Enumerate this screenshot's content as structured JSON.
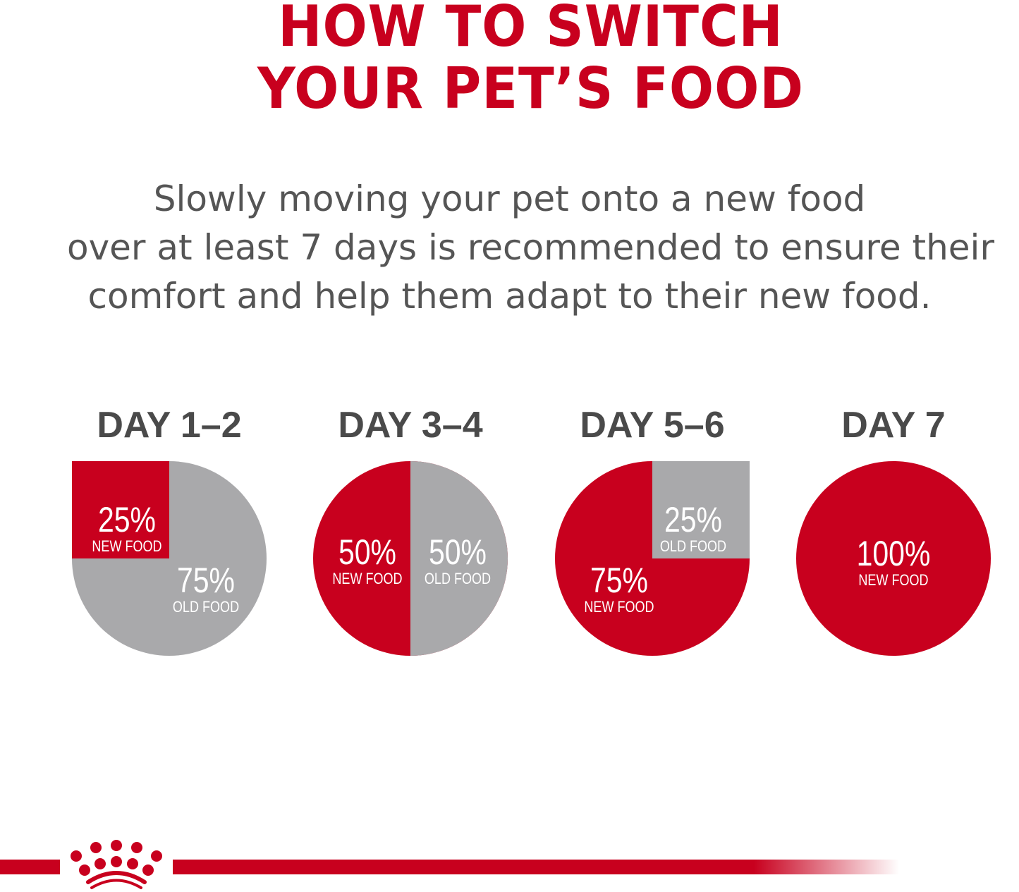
{
  "header": {
    "title_line1": "HOW TO SWITCH",
    "title_line2": "YOUR PET’S FOOD"
  },
  "subtitle": {
    "line1": "Slowly moving your pet onto a new food",
    "line2": "over at least 7 days is recommended to ensure their",
    "line3": "comfort and help them adapt to their new food."
  },
  "colors": {
    "new_food": "#c8001e",
    "old_food": "#a9a9ab",
    "title": "#c8001e",
    "text": "#555555"
  },
  "logo": "crown-logo",
  "chart_data": [
    {
      "type": "pie",
      "title": "DAY 1–2",
      "slices": [
        {
          "name": "NEW FOOD",
          "value": 25,
          "label": "25%"
        },
        {
          "name": "OLD FOOD",
          "value": 75,
          "label": "75%"
        }
      ]
    },
    {
      "type": "pie",
      "title": "DAY 3–4",
      "slices": [
        {
          "name": "NEW FOOD",
          "value": 50,
          "label": "50%"
        },
        {
          "name": "OLD FOOD",
          "value": 50,
          "label": "50%"
        }
      ]
    },
    {
      "type": "pie",
      "title": "DAY 5–6",
      "slices": [
        {
          "name": "NEW FOOD",
          "value": 75,
          "label": "75%"
        },
        {
          "name": "OLD FOOD",
          "value": 25,
          "label": "25%"
        }
      ]
    },
    {
      "type": "pie",
      "title": "DAY 7",
      "slices": [
        {
          "name": "NEW FOOD",
          "value": 100,
          "label": "100%"
        }
      ]
    }
  ]
}
